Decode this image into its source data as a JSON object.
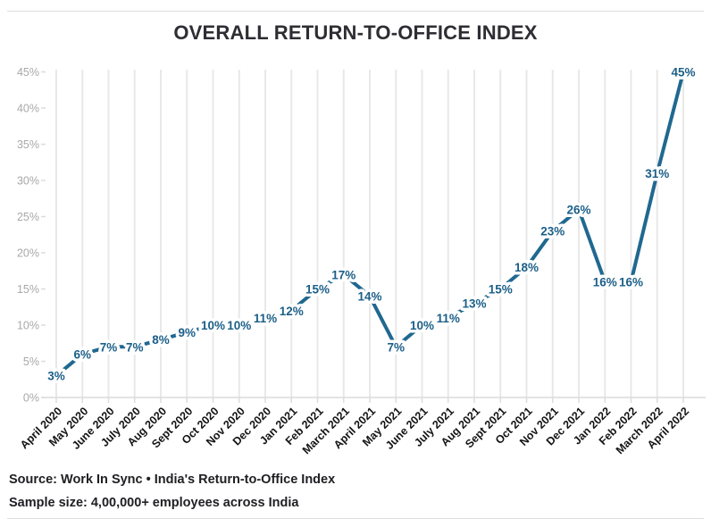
{
  "title": "OVERALL RETURN-TO-OFFICE INDEX",
  "chart_data": {
    "type": "line",
    "title": "OVERALL RETURN-TO-OFFICE INDEX",
    "categories": [
      "April 2020",
      "May 2020",
      "June 2020",
      "July 2020",
      "Aug 2020",
      "Sept 2020",
      "Oct 2020",
      "Nov 2020",
      "Dec 2020",
      "Jan 2021",
      "Feb 2021",
      "March 2021",
      "April 2021",
      "May 2021",
      "June 2021",
      "July 2021",
      "Aug 2021",
      "Sept 2021",
      "Oct 2021",
      "Nov 2021",
      "Dec 2021",
      "Jan 2022",
      "Feb 2022",
      "March 2022",
      "April 2022"
    ],
    "values": [
      3,
      6,
      7,
      7,
      8,
      9,
      10,
      10,
      11,
      12,
      15,
      17,
      14,
      7,
      10,
      11,
      13,
      15,
      18,
      23,
      26,
      16,
      16,
      31,
      45
    ],
    "data_label_suffix": "%",
    "xlabel": "",
    "ylabel": "",
    "ylim": [
      0,
      45
    ],
    "ytick_step": 5,
    "yticks": [
      "0%",
      "5%",
      "10%",
      "15%",
      "20%",
      "25%",
      "30%",
      "35%",
      "40%",
      "45%"
    ],
    "grid": "vertical-only",
    "legend": "none",
    "colors": {
      "line": "#206890",
      "data_label": "#1c5f88",
      "grid": "#e8e8e8",
      "axis_line": "#dcdcdc",
      "ytick_label": "#a8a8a8",
      "xtick_label": "#141414"
    }
  },
  "footer": {
    "source_line": "Source: Work In Sync • India's Return-to-Office Index",
    "sample_size_line": "Sample size: 4,00,000+ employees across India"
  }
}
